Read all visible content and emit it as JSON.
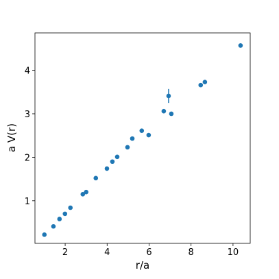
{
  "chart_data": {
    "type": "scatter",
    "x_label": "r/a",
    "y_label": "a V(r)",
    "color": "#1f77b4",
    "x": [
      1.01,
      1.44,
      1.73,
      1.99,
      2.25,
      2.84,
      3.0,
      3.46,
      3.99,
      4.25,
      4.48,
      4.97,
      5.2,
      5.65,
      5.98,
      6.7,
      6.93,
      7.06,
      8.46,
      8.66,
      10.36
    ],
    "values": [
      0.22,
      0.41,
      0.58,
      0.7,
      0.84,
      1.15,
      1.2,
      1.52,
      1.74,
      1.9,
      2.01,
      2.23,
      2.43,
      2.61,
      2.51,
      3.06,
      3.41,
      3.0,
      3.66,
      3.73,
      4.57
    ],
    "errors": [
      0.02,
      0.02,
      0.02,
      0.02,
      0.02,
      0.02,
      0.02,
      0.02,
      0.02,
      0.02,
      0.02,
      0.02,
      0.02,
      0.02,
      0.02,
      0.03,
      0.16,
      0.02,
      0.02,
      0.02,
      0.05
    ],
    "xlim": [
      0.56,
      10.82
    ],
    "ylim": [
      0.02,
      4.86
    ],
    "xticks": [
      2,
      4,
      6,
      8,
      10
    ],
    "yticks": [
      1,
      2,
      3,
      4
    ],
    "grid": false
  }
}
